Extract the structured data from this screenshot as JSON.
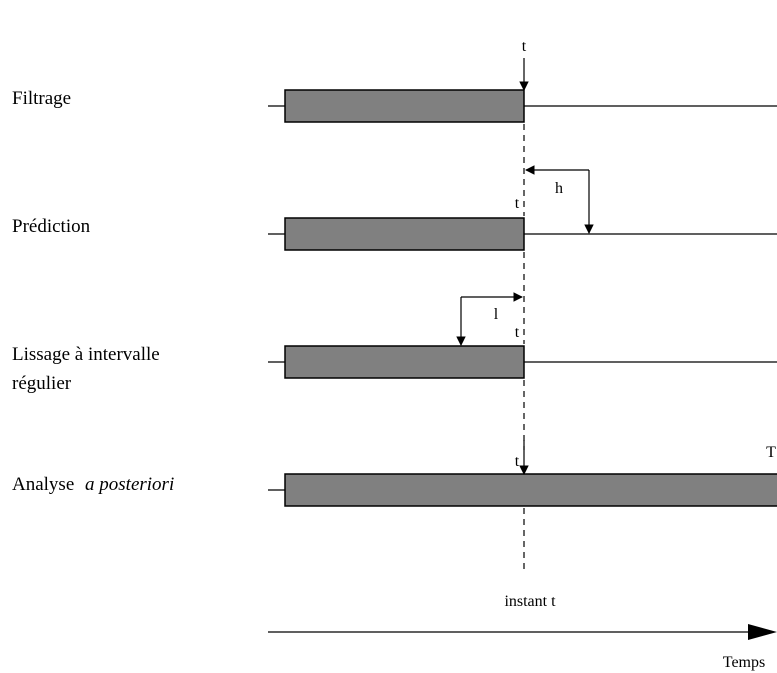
{
  "rows": [
    {
      "label": "Filtrage"
    },
    {
      "label": "Prédiction",
      "t_label": "t",
      "offset_label": "h"
    },
    {
      "label_line1": "Lissage à intervalle",
      "label_line2": "régulier",
      "t_label": "t",
      "offset_label": "l"
    },
    {
      "label_prefix": "Analyse",
      "label_italic": "a posteriori",
      "t_label": "t",
      "end_label": "T"
    }
  ],
  "top_t_label": "t",
  "instant_label": "instant t",
  "axis_label": "Temps",
  "colors": {
    "bar_fill": "#808080",
    "stroke": "#000000"
  }
}
